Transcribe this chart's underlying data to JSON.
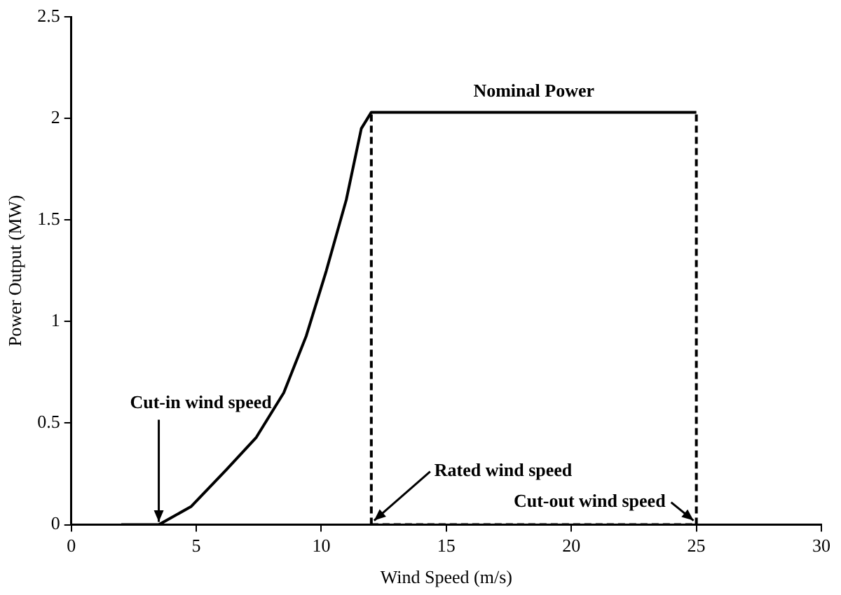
{
  "chart_data": {
    "type": "line",
    "xlabel": "Wind Speed (m/s)",
    "ylabel": "Power Output (MW)",
    "xlim": [
      0,
      30
    ],
    "xticks": [
      0,
      5,
      10,
      15,
      20,
      25,
      30
    ],
    "ylim": [
      0,
      2.5
    ],
    "yticks": [
      0,
      0.5,
      1,
      1.5,
      2,
      2.5
    ],
    "grid": false,
    "legend": false,
    "marker": "none",
    "series": [
      {
        "color": "#000000",
        "line_style": "solid",
        "x": [
          2,
          3.5,
          4.8,
          6.2,
          7.4,
          8.5,
          9.4,
          10.2,
          11,
          11.6,
          12,
          25
        ],
        "values": [
          0,
          0,
          0.09,
          0.27,
          0.43,
          0.65,
          0.93,
          1.25,
          1.6,
          1.95,
          2.03,
          2.03
        ]
      },
      {
        "color": "#000000",
        "line_style": "dashed",
        "x": [
          12,
          12
        ],
        "values": [
          0,
          2.03
        ]
      },
      {
        "color": "#000000",
        "line_style": "dashed",
        "x": [
          25,
          25
        ],
        "values": [
          0,
          2.03
        ]
      },
      {
        "color": "#000000",
        "line_style": "dashed",
        "x": [
          12,
          25
        ],
        "values": [
          0,
          0
        ]
      }
    ],
    "annotations": [
      {
        "text": "Nominal Power",
        "x": 18.5,
        "y": 2.03
      },
      {
        "text": "Cut-in wind speed",
        "x": 3.5,
        "y": 0
      },
      {
        "text": "Rated wind speed",
        "x": 12,
        "y": 0
      },
      {
        "text": "Cut-out wind speed",
        "x": 25,
        "y": 0
      }
    ]
  }
}
